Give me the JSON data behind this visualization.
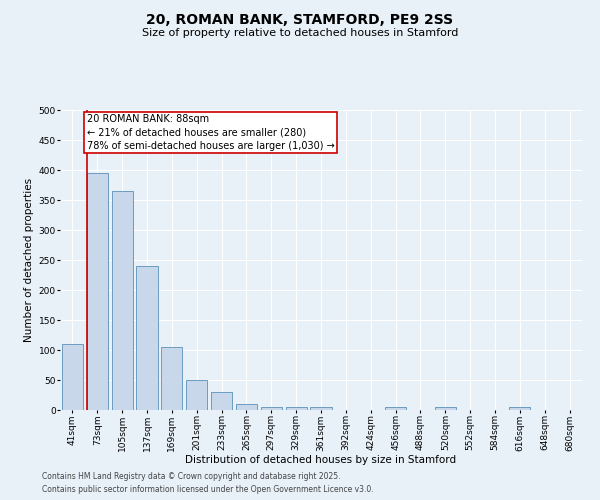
{
  "title_line1": "20, ROMAN BANK, STAMFORD, PE9 2SS",
  "title_line2": "Size of property relative to detached houses in Stamford",
  "xlabel": "Distribution of detached houses by size in Stamford",
  "ylabel": "Number of detached properties",
  "categories": [
    "41sqm",
    "73sqm",
    "105sqm",
    "137sqm",
    "169sqm",
    "201sqm",
    "233sqm",
    "265sqm",
    "297sqm",
    "329sqm",
    "361sqm",
    "392sqm",
    "424sqm",
    "456sqm",
    "488sqm",
    "520sqm",
    "552sqm",
    "584sqm",
    "616sqm",
    "648sqm",
    "680sqm"
  ],
  "values": [
    110,
    395,
    365,
    240,
    105,
    50,
    30,
    10,
    5,
    5,
    5,
    0,
    0,
    5,
    0,
    5,
    0,
    0,
    5,
    0,
    0
  ],
  "bar_color": "#c8d8ea",
  "bar_edge_color": "#6a9cc0",
  "vline_color": "#cc0000",
  "vline_x_index": 1,
  "annotation_text_line1": "20 ROMAN BANK: 88sqm",
  "annotation_text_line2": "← 21% of detached houses are smaller (280)",
  "annotation_text_line3": "78% of semi-detached houses are larger (1,030) →",
  "annotation_box_edge_color": "#cc0000",
  "background_color": "#e8f0f8",
  "footer_line1": "Contains HM Land Registry data © Crown copyright and database right 2025.",
  "footer_line2": "Contains public sector information licensed under the Open Government Licence v3.0.",
  "ylim": [
    0,
    500
  ],
  "yticks": [
    0,
    50,
    100,
    150,
    200,
    250,
    300,
    350,
    400,
    450,
    500
  ],
  "title_fontsize": 10,
  "subtitle_fontsize": 8,
  "axis_label_fontsize": 7.5,
  "tick_fontsize": 6.5,
  "footer_fontsize": 5.5,
  "annotation_fontsize": 7
}
